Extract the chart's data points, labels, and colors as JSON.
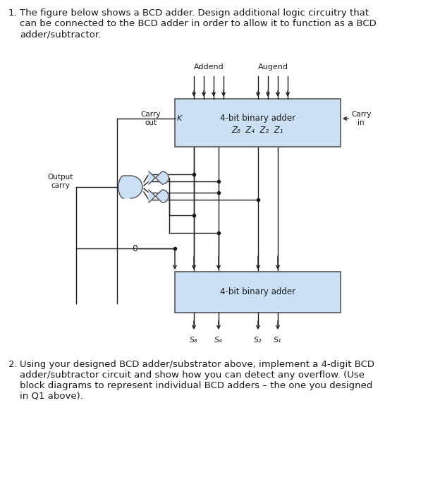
{
  "bg_color": "#ffffff",
  "box_fill": "#cce0f5",
  "box_edge": "#555555",
  "line_color": "#1a1a1a",
  "gate_fill": "#cce0f5",
  "gate_edge": "#555555",
  "text_color": "#1a1a1a",
  "box1_label": "4-bit binary adder",
  "box1_sublabel": "Z₈  Z₄  Z₂  Z₁",
  "box2_label": "4-bit binary adder",
  "addend_label": "Addend",
  "augend_label": "Augend",
  "carry_out_label": "Carry\nout",
  "carry_in_label": "Carry\nin",
  "output_carry_label": "Output\ncarry",
  "k_label": "K",
  "zero_label": "0",
  "s_labels": [
    "S₈",
    "S₄",
    "S₂",
    "S₁"
  ],
  "q1_lines": [
    "The figure below shows a BCD adder. Design additional logic circuitry that",
    "can be connected to the BCD adder in order to allow it to function as a BCD",
    "adder/subtractor."
  ],
  "q2_lines": [
    "Using your designed BCD adder/substrator above, implement a 4-digit BCD",
    "adder/subtractor circuit and show how you can detect any overflow. (Use",
    "block diagrams to represent individual BCD adders – the one you designed",
    "in Q1 above)."
  ]
}
